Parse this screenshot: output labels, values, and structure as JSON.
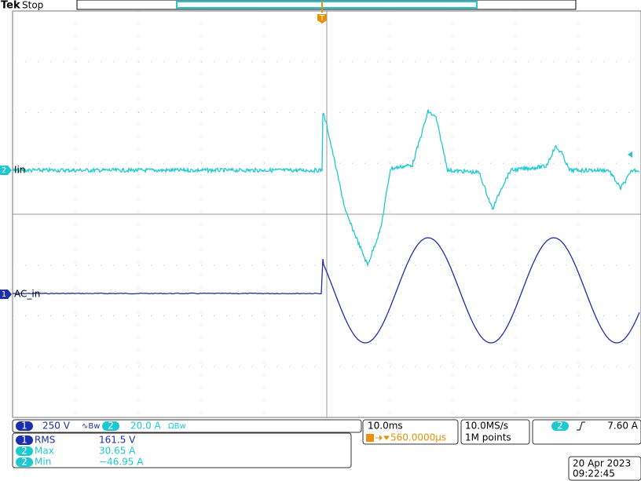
{
  "header": {
    "brand": "Tek",
    "status": "Stop",
    "trigger_marker": "T"
  },
  "channels": [
    {
      "number": "2",
      "label": "Iin"
    },
    {
      "number": "1",
      "label": "AC_in"
    }
  ],
  "vertical": [
    {
      "number": "1",
      "scale": "250 V",
      "coupling": "∿Bw"
    },
    {
      "number": "2",
      "scale": "20.0 A",
      "coupling": "ΩBw"
    }
  ],
  "timebase": {
    "scale": "10.0ms",
    "position": "560.0000µs"
  },
  "acquisition": {
    "rate": "10.0MS/s",
    "length": "1M points"
  },
  "trigger": {
    "source": "2",
    "level": "7.60 A"
  },
  "measurements": [
    {
      "channel": "1",
      "name": "RMS",
      "value": "161.5 V"
    },
    {
      "channel": "2",
      "name": "Max",
      "value": "30.65 A"
    },
    {
      "channel": "2",
      "name": "Min",
      "value": "−46.95 A"
    }
  ],
  "timestamp": {
    "date": "20 Apr 2023",
    "time": "09:22:45"
  }
}
